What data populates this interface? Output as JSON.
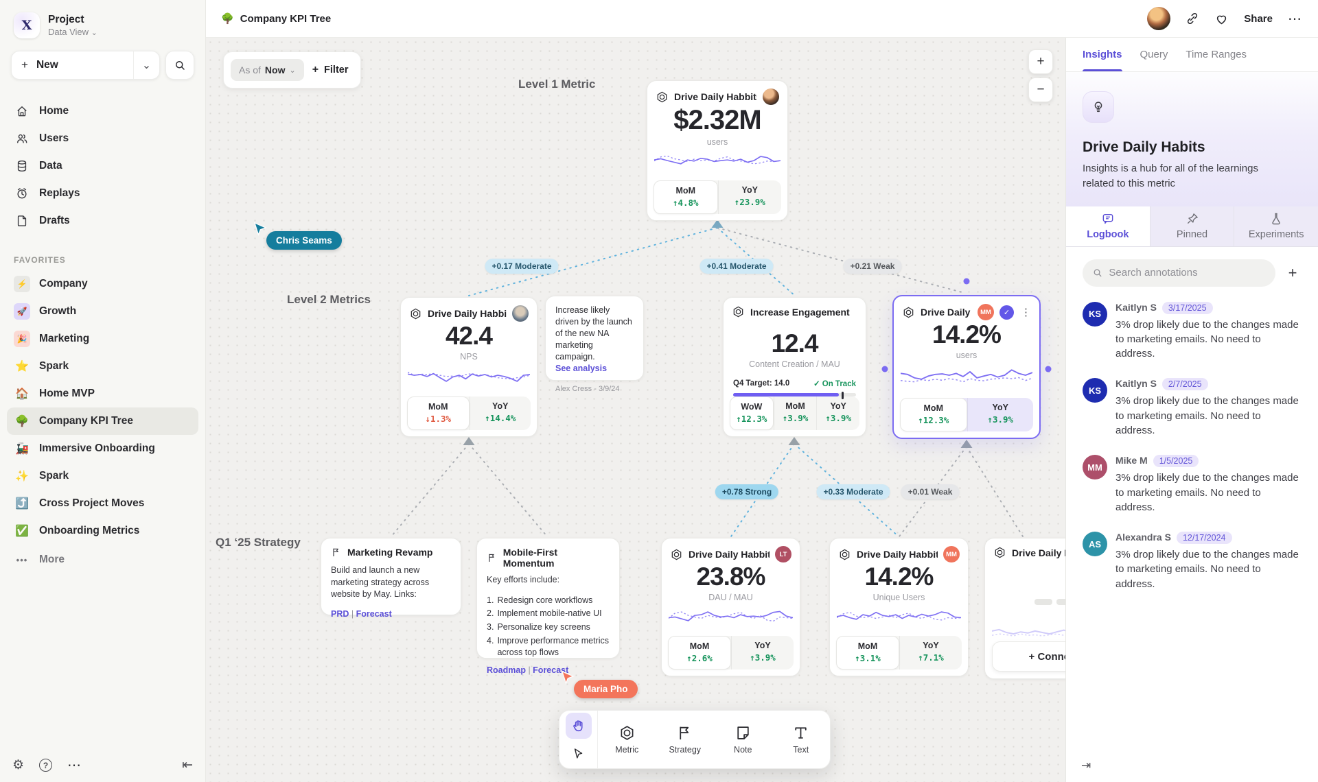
{
  "icons": {
    "plus": "+",
    "minus": "−",
    "chevron_down": "⌄",
    "ellipsis_h": "⋯",
    "more_dots": "•••",
    "gear": "⚙",
    "question": "?",
    "collapse_left": "⇤",
    "collapse_right": "⇥",
    "check": "✓",
    "kebab": "⋮",
    "logo_glyph": "Χ",
    "list_sep": "|"
  },
  "sidebar": {
    "project_name": "Project",
    "workspace": "Data View",
    "new_label": "New",
    "favorites_label": "FAVORITES",
    "more_label": "More",
    "nav": [
      {
        "id": "home",
        "label": "Home"
      },
      {
        "id": "users",
        "label": "Users"
      },
      {
        "id": "data",
        "label": "Data"
      },
      {
        "id": "replays",
        "label": "Replays"
      },
      {
        "id": "drafts",
        "label": "Drafts"
      }
    ],
    "favorites": [
      {
        "label": "Company",
        "emoji": "⚡",
        "tile": "#e8e8e4"
      },
      {
        "label": "Growth",
        "emoji": "🚀",
        "tile": "#ded7fa"
      },
      {
        "label": "Marketing",
        "emoji": "🎉",
        "tile": "#fbd9d3"
      },
      {
        "label": "Spark",
        "emoji": "⭐"
      },
      {
        "label": "Home MVP",
        "emoji": "🏠"
      },
      {
        "label": "Company KPI Tree",
        "emoji": "🌳",
        "active": true
      },
      {
        "label": "Immersive Onboarding",
        "emoji": "🚂"
      },
      {
        "label": "Spark",
        "emoji": "✨"
      },
      {
        "label": "Cross Project Moves",
        "emoji": "⤴️"
      },
      {
        "label": "Onboarding Metrics",
        "emoji": "✅"
      }
    ]
  },
  "topbar": {
    "doc_emoji": "🌳",
    "title": "Company KPI Tree",
    "share_label": "Share"
  },
  "canvas": {
    "asof_label": "As of",
    "asof_value": "Now",
    "filter_label": "Filter",
    "level1_label": "Level 1 Metric",
    "level2_label": "Level 2 Metrics",
    "strategy_label": "Q1 ‘25 Strategy",
    "edge_labels": [
      "+0.17 Moderate",
      "+0.41 Moderate",
      "+0.21 Weak",
      "+0.78 Strong",
      "+0.33 Moderate",
      "+0.01 Weak"
    ],
    "cursors": [
      {
        "name": "Chris Seams",
        "color": "#157d9d"
      },
      {
        "name": "Maria Pho",
        "color": "#f3755b"
      }
    ],
    "cards": {
      "l1": {
        "title": "Drive Daily Habbits",
        "value": "$2.32M",
        "unit": "users",
        "stats": [
          {
            "label": "MoM",
            "value": "↑4.8%",
            "trend": "up",
            "hl": true
          },
          {
            "label": "YoY",
            "value": "↑23.9%",
            "trend": "up"
          }
        ],
        "spark": {
          "solid": [
            55,
            60,
            52,
            45,
            38,
            55,
            50,
            62,
            58,
            48,
            52,
            55,
            50,
            58,
            45,
            52,
            70,
            65,
            48,
            52
          ],
          "dotted": [
            50,
            68,
            72,
            60,
            55,
            48,
            58,
            52,
            55,
            50,
            62,
            68,
            55,
            50,
            45,
            38,
            42,
            50,
            48,
            52
          ]
        }
      },
      "nps": {
        "title": "Drive Daily Habbits",
        "value": "42.4",
        "unit": "NPS",
        "stats": [
          {
            "label": "MoM",
            "value": "↓1.3%",
            "trend": "down",
            "hl": true
          },
          {
            "label": "YoY",
            "value": "↑14.4%",
            "trend": "up"
          }
        ],
        "spark": {
          "solid": [
            60,
            55,
            58,
            50,
            62,
            45,
            30,
            48,
            55,
            40,
            60,
            52,
            58,
            48,
            55,
            50,
            42,
            30,
            55,
            58
          ],
          "dotted": [
            68,
            55,
            60,
            58,
            62,
            55,
            50,
            52,
            48,
            58,
            62,
            55,
            58,
            52,
            45,
            42,
            40,
            45,
            48,
            55
          ]
        }
      },
      "note": {
        "text": "Increase likely driven by the launch of the new NA marketing campaign.",
        "link": "See analysis",
        "byline": "Alex Cress - 3/9/24"
      },
      "engagement": {
        "title": "Increase Engagement",
        "value": "12.4",
        "unit": "Content Creation / MAU",
        "target_label": "Q4 Target: 14.0",
        "status": "✓ On Track",
        "progress_pct": 86,
        "marker_pct": 88,
        "stats": [
          {
            "label": "WoW",
            "value": "↑12.3%",
            "trend": "up",
            "hl": true
          },
          {
            "label": "MoM",
            "value": "↑3.9%",
            "trend": "up"
          },
          {
            "label": "YoY",
            "value": "↑3.9%",
            "trend": "up"
          }
        ]
      },
      "selected": {
        "title": "Drive Daily Habb..",
        "avatar": "MM",
        "avatar_color": "#f0745c",
        "value": "14.2%",
        "unit": "users",
        "stats": [
          {
            "label": "MoM",
            "value": "↑12.3%",
            "trend": "up",
            "hl": true
          },
          {
            "label": "YoY",
            "value": "↑3.9%",
            "trend": "up"
          }
        ],
        "spark": {
          "solid": [
            62,
            58,
            45,
            40,
            52,
            58,
            60,
            55,
            62,
            50,
            68,
            45,
            52,
            58,
            48,
            55,
            75,
            62,
            55,
            65
          ],
          "dotted": [
            35,
            32,
            30,
            38,
            35,
            40,
            36,
            42,
            38,
            30,
            42,
            36,
            34,
            40,
            42,
            45,
            42,
            46,
            35,
            44
          ]
        }
      },
      "strategy1": {
        "title": "Marketing Revamp",
        "body": "Build and launch a new marketing strategy across website by May. Links:",
        "links": [
          "PRD",
          "Forecast"
        ]
      },
      "strategy2": {
        "title": "Mobile-First Momentum",
        "intro": "Key efforts include:",
        "items": [
          "Redesign core workflows",
          "Implement mobile-native UI",
          "Personalize key screens",
          "Improve performance metrics across top flows"
        ],
        "links": [
          "Roadmap",
          "Forecast"
        ]
      },
      "dau": {
        "title": "Drive Daily Habbits",
        "avatar": "LT",
        "avatar_color": "#b04f63",
        "value": "23.8%",
        "unit": "DAU / MAU",
        "stats": [
          {
            "label": "MoM",
            "value": "↑2.6%",
            "trend": "up",
            "hl": true
          },
          {
            "label": "YoY",
            "value": "↑3.9%",
            "trend": "up"
          }
        ],
        "spark": {
          "solid": [
            45,
            48,
            40,
            32,
            55,
            58,
            70,
            55,
            48,
            52,
            45,
            58,
            50,
            52,
            48,
            55,
            68,
            72,
            52,
            45
          ],
          "dotted": [
            42,
            65,
            70,
            55,
            48,
            42,
            55,
            48,
            45,
            52,
            62,
            68,
            50,
            42,
            55,
            35,
            30,
            48,
            45,
            42
          ]
        }
      },
      "unique": {
        "title": "Drive Daily Habbits",
        "avatar": "MM",
        "avatar_color": "#f0745c",
        "value": "14.2%",
        "unit": "Unique Users",
        "stats": [
          {
            "label": "MoM",
            "value": "↑3.1%",
            "trend": "up",
            "hl": true
          },
          {
            "label": "YoY",
            "value": "↑7.1%",
            "trend": "up"
          }
        ],
        "spark": {
          "solid": [
            50,
            55,
            45,
            38,
            58,
            52,
            68,
            55,
            50,
            58,
            42,
            55,
            48,
            60,
            52,
            58,
            70,
            65,
            48,
            45
          ],
          "dotted": [
            45,
            62,
            68,
            52,
            45,
            50,
            42,
            48,
            55,
            45,
            58,
            65,
            48,
            42,
            52,
            38,
            35,
            45,
            42,
            45
          ]
        }
      },
      "partial": {
        "title": "Drive Daily Habbits",
        "connect_label": "+ Connect",
        "spark": {
          "solid": [
            55,
            60,
            50,
            45,
            52,
            48,
            55,
            50,
            45,
            52,
            58,
            50,
            55,
            48,
            52,
            60,
            55,
            50
          ],
          "dotted": [
            40,
            45,
            42,
            38,
            45,
            40,
            42,
            38,
            42,
            45,
            40,
            38,
            42,
            40,
            45,
            42,
            40,
            38
          ]
        }
      }
    }
  },
  "toolbar": {
    "tools": [
      {
        "id": "metric",
        "label": "Metric"
      },
      {
        "id": "strategy",
        "label": "Strategy"
      },
      {
        "id": "note",
        "label": "Note"
      },
      {
        "id": "text",
        "label": "Text"
      }
    ]
  },
  "panel": {
    "tabs": [
      {
        "label": "Insights",
        "active": true
      },
      {
        "label": "Query"
      },
      {
        "label": "Time Ranges"
      }
    ],
    "title": "Drive Daily Habits",
    "description": "Insights is a hub for all of the learnings related to this metric",
    "subtabs": [
      {
        "id": "logbook",
        "label": "Logbook",
        "active": true
      },
      {
        "id": "pinned",
        "label": "Pinned"
      },
      {
        "id": "experiments",
        "label": "Experiments"
      }
    ],
    "search_placeholder": "Search annotations",
    "annotations": [
      {
        "initials": "KS",
        "name": "Kaitlyn S",
        "date": "3/17/2025",
        "color": "#1e2cb0",
        "text": "3% drop likely due to the changes made to marketing emails. No need to address."
      },
      {
        "initials": "KS",
        "name": "Kaitlyn S",
        "date": "2/7/2025",
        "color": "#1e2cb0",
        "text": "3% drop likely due to the changes made to marketing emails. No need to address."
      },
      {
        "initials": "MM",
        "name": "Mike M",
        "date": "1/5/2025",
        "color": "#ad4f6a",
        "text": "3% drop likely due to the changes made to marketing emails. No need to address."
      },
      {
        "initials": "AS",
        "name": "Alexandra S",
        "date": "12/17/2024",
        "color": "#2d93a8",
        "text": "3% drop likely due to the changes made to marketing emails. No need to address."
      }
    ]
  }
}
